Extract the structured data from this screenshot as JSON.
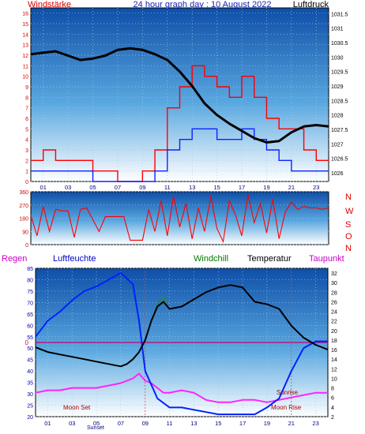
{
  "title": "24 hour graph day : 10 August 2022",
  "chart_data": [
    {
      "type": "line",
      "panel": "wind-pressure",
      "y_left_label": "Windstärke",
      "y_right_label": "Luftdruck",
      "ylim_left": [
        0,
        16.5
      ],
      "ylim_right": [
        1025.7,
        1031.7
      ],
      "y_left_ticks": [
        "0",
        "1",
        "2",
        "3",
        "4",
        "5",
        "6",
        "7",
        "8",
        "9",
        "10",
        "11",
        "12",
        "13",
        "14",
        "15",
        "16"
      ],
      "y_right_ticks": [
        "1026",
        "1026.5",
        "1027",
        "1027.5",
        "1028",
        "1028.5",
        "1029",
        "1029.5",
        "1030",
        "1030.5",
        "1031",
        "1031.5"
      ],
      "x_ticks": [
        "01",
        "03",
        "05",
        "07",
        "09",
        "11",
        "13",
        "15",
        "17",
        "19",
        "21",
        "23"
      ],
      "series": [
        {
          "name": "Luftdruck",
          "axis": "right",
          "x": [
            0,
            1,
            2,
            3,
            4,
            5,
            6,
            7,
            8,
            9,
            10,
            11,
            12,
            13,
            14,
            15,
            16,
            17,
            18,
            19,
            20,
            21,
            22,
            23,
            24
          ],
          "values": [
            1030.1,
            1030.15,
            1030.2,
            1030.05,
            1029.9,
            1029.95,
            1030.05,
            1030.25,
            1030.3,
            1030.25,
            1030.1,
            1029.9,
            1029.5,
            1029.0,
            1028.4,
            1028.0,
            1027.7,
            1027.45,
            1027.2,
            1027.05,
            1027.1,
            1027.4,
            1027.6,
            1027.65,
            1027.6
          ]
        },
        {
          "name": "Windboen",
          "axis": "left",
          "x": [
            0,
            1,
            2,
            3,
            4,
            5,
            6,
            7,
            8,
            9,
            10,
            11,
            12,
            13,
            14,
            15,
            16,
            17,
            18,
            19,
            20,
            21,
            22,
            23,
            24
          ],
          "values": [
            2,
            3,
            2,
            2,
            2,
            1,
            1,
            0,
            0,
            1,
            3,
            7,
            9,
            11,
            10,
            9,
            8,
            10,
            8,
            6,
            5,
            5,
            3,
            2,
            2
          ]
        },
        {
          "name": "Windstärke",
          "axis": "left",
          "x": [
            0,
            1,
            2,
            3,
            4,
            5,
            6,
            7,
            8,
            9,
            10,
            11,
            12,
            13,
            14,
            15,
            16,
            17,
            18,
            19,
            20,
            21,
            22,
            23,
            24
          ],
          "values": [
            1,
            1,
            1,
            1,
            1,
            0,
            0,
            0,
            0,
            0,
            1,
            3,
            4,
            5,
            5,
            4,
            4,
            5,
            4,
            3,
            2,
            1,
            1,
            1,
            1
          ]
        }
      ]
    },
    {
      "type": "line",
      "panel": "wind-direction",
      "ylim": [
        0,
        360
      ],
      "y_ticks": [
        "0",
        "90",
        "180",
        "270",
        "360"
      ],
      "compass_labels": [
        "N",
        "W",
        "S",
        "O",
        "N"
      ],
      "series": [
        {
          "name": "Windrichtung",
          "x": [
            0,
            0.5,
            1,
            1.5,
            2,
            2.5,
            3,
            3.5,
            4,
            4.5,
            5,
            5.5,
            6,
            6.5,
            7,
            7.5,
            8,
            8.5,
            9,
            9.5,
            10,
            10.5,
            11,
            11.5,
            12,
            12.5,
            13,
            13.5,
            14,
            14.5,
            15,
            15.5,
            16,
            16.5,
            17,
            17.5,
            18,
            18.5,
            19,
            19.5,
            20,
            20.5,
            21,
            21.5,
            22,
            22.5,
            23,
            23.5,
            24
          ],
          "values": [
            200,
            60,
            260,
            90,
            240,
            230,
            230,
            50,
            240,
            250,
            170,
            90,
            190,
            190,
            190,
            190,
            30,
            30,
            30,
            240,
            90,
            300,
            60,
            330,
            120,
            280,
            40,
            250,
            90,
            330,
            110,
            20,
            300,
            200,
            60,
            340,
            150,
            280,
            80,
            310,
            40,
            220,
            290,
            240,
            260,
            250,
            250,
            240,
            250
          ]
        }
      ]
    },
    {
      "type": "line",
      "panel": "humidity-temperature",
      "left_labels": [
        "Regen",
        "Luftfeuchte"
      ],
      "right_labels": [
        "Windchill",
        "Temperatur",
        "Taupunkt"
      ],
      "ylim_left": [
        20,
        85
      ],
      "ylim_right": [
        2,
        33
      ],
      "y_left_ticks": [
        "20",
        "25",
        "30",
        "35",
        "40",
        "45",
        "50",
        "55",
        "60",
        "65",
        "70",
        "75",
        "80",
        "85"
      ],
      "y_right_ticks": [
        "2",
        "4",
        "6",
        "8",
        "10",
        "12",
        "14",
        "16",
        "18",
        "20",
        "22",
        "24",
        "26",
        "28",
        "30",
        "32"
      ],
      "rain_value_label": "0",
      "x_ticks": [
        "01",
        "03",
        "05",
        "07",
        "09",
        "11",
        "13",
        "15",
        "17",
        "19",
        "21",
        "23"
      ],
      "annotations": [
        "Moon Set",
        "Sunrise",
        "Moon Rise",
        "Sunset"
      ],
      "series": [
        {
          "name": "Luftfeuchte",
          "axis": "left",
          "x": [
            0,
            1,
            2,
            3,
            4,
            5,
            6,
            7,
            8,
            8.5,
            9,
            10,
            11,
            12,
            13,
            14,
            15,
            16,
            17,
            18,
            19,
            20,
            21,
            22,
            23,
            24
          ],
          "values": [
            55,
            62,
            66,
            71,
            75,
            77,
            80,
            83,
            78,
            62,
            40,
            28,
            24,
            24,
            23,
            22,
            21,
            21,
            21,
            21,
            24,
            28,
            40,
            50,
            53,
            53
          ]
        },
        {
          "name": "Temperatur",
          "axis": "right",
          "x": [
            0,
            1,
            2,
            3,
            4,
            5,
            6,
            7,
            7.5,
            8,
            8.5,
            9,
            9.5,
            10,
            10.5,
            11,
            12,
            13,
            14,
            15,
            16,
            17,
            18,
            19,
            20,
            21,
            22,
            23,
            24
          ],
          "values": [
            16.5,
            15.5,
            15,
            14.5,
            14,
            13.5,
            13,
            12.5,
            13,
            14,
            15.5,
            18,
            22,
            25,
            26,
            24.5,
            25,
            26.5,
            28,
            29,
            29.5,
            29,
            26,
            25.5,
            24.5,
            21,
            18.5,
            17,
            16
          ]
        },
        {
          "name": "Windchill",
          "axis": "right",
          "x": [
            0,
            1,
            2,
            3,
            4,
            5,
            6,
            7,
            7.5,
            8,
            8.5,
            9,
            9.5,
            10,
            10.5,
            11,
            12,
            13,
            14,
            15,
            16,
            17,
            18,
            19,
            20,
            21,
            22,
            23,
            24
          ],
          "values": [
            16.5,
            15.5,
            15,
            14.5,
            14,
            13.5,
            13,
            12.5,
            13,
            14,
            15.5,
            18,
            22,
            25.5,
            27,
            24.5,
            25,
            26.5,
            28,
            29,
            29.5,
            29,
            26,
            25.5,
            24.5,
            21,
            18.5,
            17,
            16
          ]
        },
        {
          "name": "Taupunkt",
          "axis": "right",
          "x": [
            0,
            1,
            2,
            3,
            4,
            5,
            6,
            7,
            8,
            8.5,
            9,
            9.5,
            10,
            10.5,
            11,
            12,
            13,
            14,
            15,
            16,
            17,
            18,
            19,
            20,
            21,
            22,
            23,
            24
          ],
          "values": [
            7,
            7.5,
            7.5,
            8,
            8,
            8,
            8.5,
            9,
            10,
            11,
            9.5,
            9,
            8,
            7,
            7,
            7.5,
            7,
            5.5,
            5,
            5,
            5.5,
            5.5,
            5,
            5.5,
            6,
            6.5,
            7,
            7
          ]
        }
      ]
    }
  ]
}
